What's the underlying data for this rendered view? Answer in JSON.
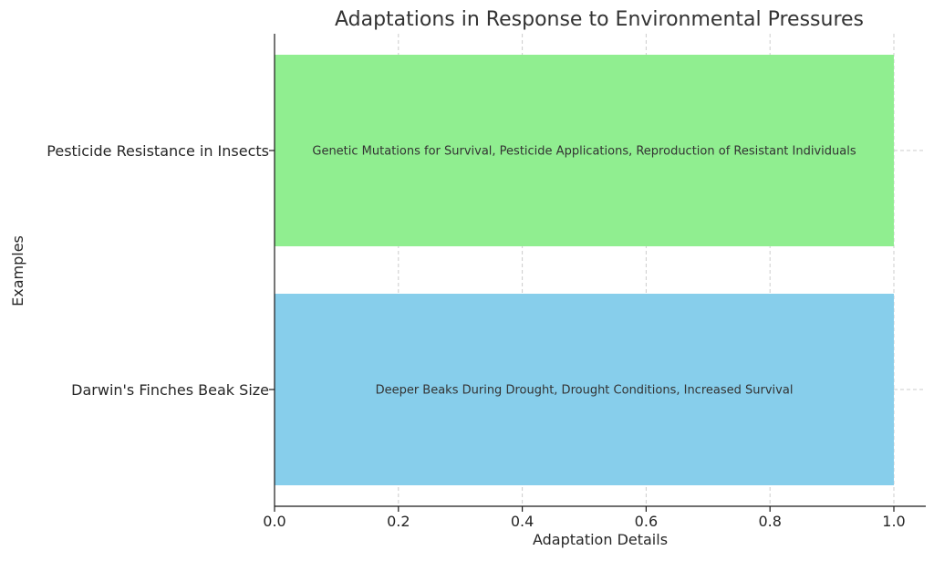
{
  "chart_data": {
    "type": "bar",
    "orientation": "horizontal",
    "title": "Adaptations in Response to Environmental Pressures",
    "xlabel": "Adaptation Details",
    "ylabel": "Examples",
    "xlim": [
      0.0,
      1.0
    ],
    "xticks": [
      "0.0",
      "0.2",
      "0.4",
      "0.6",
      "0.8",
      "1.0"
    ],
    "grid": true,
    "categories": [
      "Darwin's Finches Beak Size",
      "Pesticide Resistance in Insects"
    ],
    "values": [
      1.0,
      1.0
    ],
    "bar_labels": [
      "Deeper Beaks During Drought, Drought Conditions, Increased Survival",
      "Genetic Mutations for Survival, Pesticide Applications, Reproduction of Resistant Individuals"
    ],
    "colors": [
      "#87ceeb",
      "#90ee90"
    ]
  }
}
